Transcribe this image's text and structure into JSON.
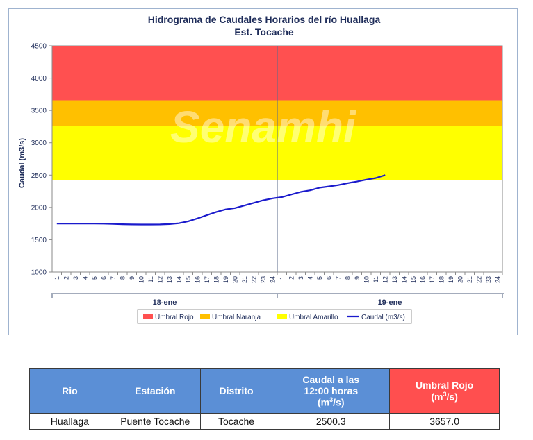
{
  "chart_data": {
    "type": "line",
    "title": "Hidrograma de Caudales Horarios del río Huallaga",
    "subtitle": "Est. Tocache",
    "ylabel": "Caudal  (m3/s)",
    "ylim": [
      1000,
      4500
    ],
    "yticks": [
      "1000",
      "1500",
      "2000",
      "2500",
      "3000",
      "3500",
      "4000",
      "4500"
    ],
    "x_hour_labels": [
      "1",
      "2",
      "3",
      "4",
      "5",
      "6",
      "7",
      "8",
      "9",
      "10",
      "11",
      "12",
      "13",
      "14",
      "15",
      "16",
      "17",
      "18",
      "19",
      "20",
      "21",
      "22",
      "23",
      "24"
    ],
    "days": [
      "18-ene",
      "19-ene"
    ],
    "thresholds": [
      {
        "name": "Umbral Rojo",
        "from": 3657,
        "to": 4500,
        "color": "#ff5050"
      },
      {
        "name": "Umbral Naranja",
        "from": 3260,
        "to": 3657,
        "color": "#ffc000"
      },
      {
        "name": "Umbral Amarillo",
        "from": 2420,
        "to": 3260,
        "color": "#ffff00"
      }
    ],
    "series": [
      {
        "name": "Caudal (m3/s)",
        "color": "#1a1acc",
        "x": [
          1,
          2,
          3,
          4,
          5,
          6,
          7,
          8,
          9,
          10,
          11,
          12,
          13,
          14,
          15,
          16,
          17,
          18,
          19,
          20,
          21,
          22,
          23,
          24,
          25,
          26,
          27,
          28,
          29,
          30,
          31,
          32,
          33,
          34,
          35,
          36
        ],
        "values": [
          1750,
          1750,
          1750,
          1750,
          1750,
          1748,
          1745,
          1740,
          1737,
          1735,
          1735,
          1737,
          1742,
          1755,
          1785,
          1830,
          1880,
          1930,
          1970,
          1990,
          2030,
          2070,
          2110,
          2140,
          2160,
          2200,
          2240,
          2265,
          2305,
          2325,
          2345,
          2375,
          2400,
          2430,
          2455,
          2500.3
        ]
      }
    ],
    "legend": [
      "Umbral Rojo",
      "Umbral Naranja",
      "Umbral Amarillo",
      "Caudal (m3/s)"
    ],
    "legend_position": "bottom",
    "grid": false
  },
  "watermark": "Senamhi",
  "table": {
    "headers": {
      "rio": "Rio",
      "estacion": "Estación",
      "distrito": "Distrito",
      "caudal_line1": "Caudal a las",
      "caudal_line2": "12:00 horas",
      "caudal_unit_pre": "(m",
      "caudal_unit_sup": "3",
      "caudal_unit_post": "/s)",
      "umbral_line1": "Umbral Rojo",
      "umbral_unit_pre": "(m",
      "umbral_unit_sup": "3",
      "umbral_unit_post": "/s)"
    },
    "row": {
      "rio": "Huallaga",
      "estacion": "Puente Tocache",
      "distrito": "Tocache",
      "caudal": "2500.3",
      "umbral": "3657.0"
    },
    "colors": {
      "header": "#5b8fd6",
      "header_red": "#ff4f4f"
    }
  }
}
